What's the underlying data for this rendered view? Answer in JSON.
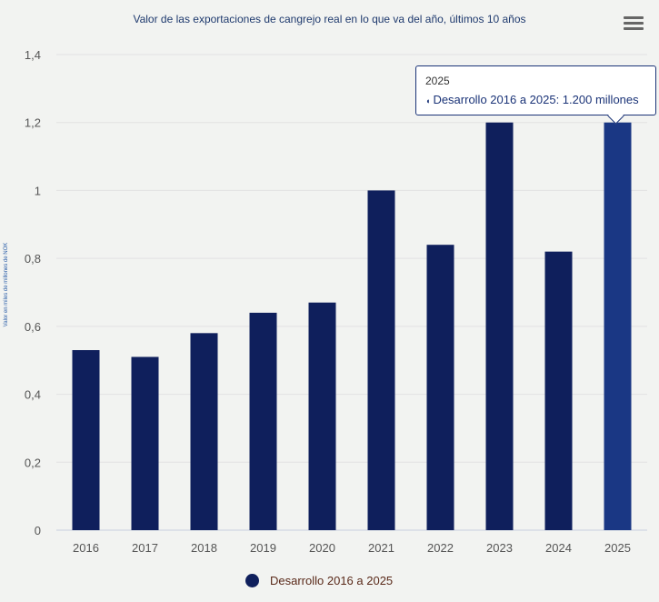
{
  "title": "Valor de las exportaciones de cangrejo real en lo que va del año, últimos 10 años",
  "menu_icon": "hamburger-menu-icon",
  "colors": {
    "bar": "#0f1f5c",
    "bar_hover": "#1a3784",
    "grid": "#e2e2e2",
    "background": "#f2f3f1"
  },
  "chart_data": {
    "type": "bar",
    "title": "Valor de las exportaciones de cangrejo real en lo que va del año, últimos 10 años",
    "xlabel": "",
    "ylabel": "Valor en miles de millones de NOK",
    "ylim": [
      0,
      1.4
    ],
    "yticks": [
      "0",
      "0,2",
      "0,4",
      "0,6",
      "0,8",
      "1",
      "1,2",
      "1,4"
    ],
    "categories": [
      "2016",
      "2017",
      "2018",
      "2019",
      "2020",
      "2021",
      "2022",
      "2023",
      "2024",
      "2025"
    ],
    "series": [
      {
        "name": "Desarrollo 2016 a 2025",
        "values": [
          0.53,
          0.51,
          0.58,
          0.64,
          0.67,
          1.0,
          0.84,
          1.2,
          0.82,
          1.2
        ]
      }
    ],
    "grid": true,
    "legend_position": "bottom-center"
  },
  "legend": {
    "label": "Desarrollo 2016 a 2025"
  },
  "tooltip": {
    "header": "2025",
    "body": "Desarrollo 2016 a 2025: 1.200 millones",
    "bullet": "●"
  }
}
